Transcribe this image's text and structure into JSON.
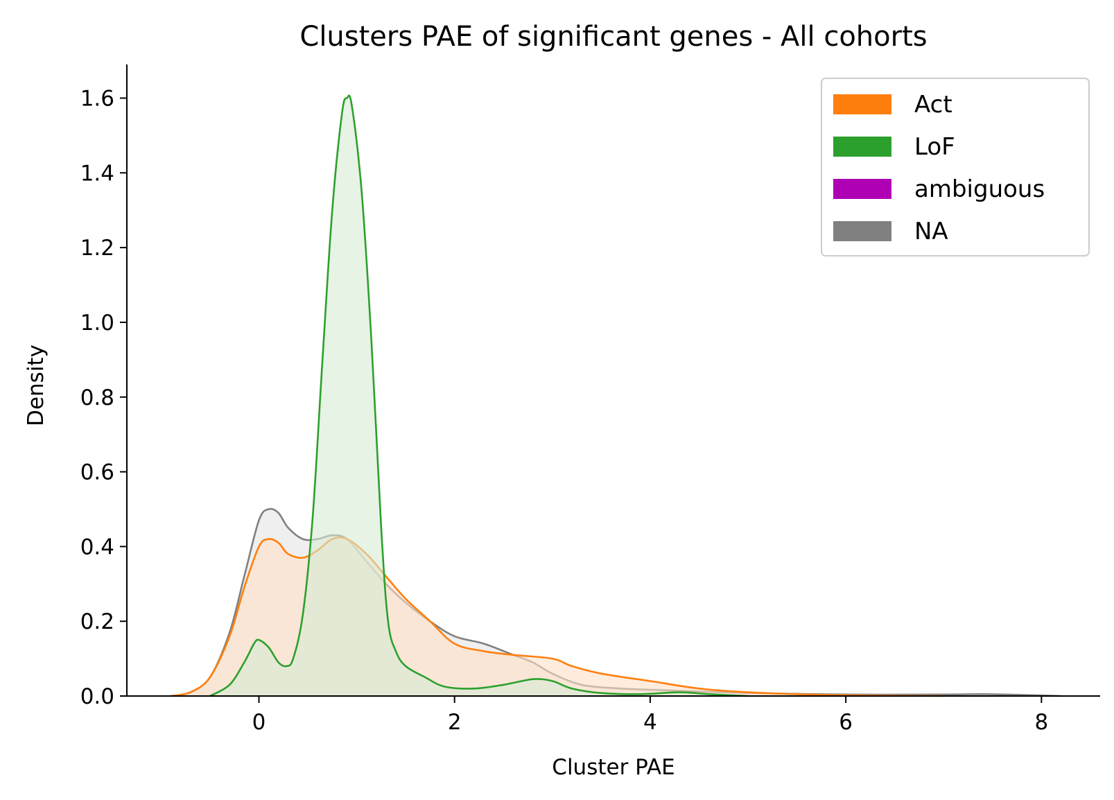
{
  "chart_data": {
    "type": "area",
    "title": "Clusters PAE of significant genes - All cohorts",
    "xlabel": "Cluster PAE",
    "ylabel": "Density",
    "xlim": [
      -1.35,
      8.6
    ],
    "ylim": [
      0,
      1.69
    ],
    "xticks": [
      0,
      2,
      4,
      6,
      8
    ],
    "yticks": [
      0.0,
      0.2,
      0.4,
      0.6,
      0.8,
      1.0,
      1.2,
      1.4,
      1.6
    ],
    "xtick_labels": [
      "0",
      "2",
      "4",
      "6",
      "8"
    ],
    "ytick_labels": [
      "0.0",
      "0.2",
      "0.4",
      "0.6",
      "0.8",
      "1.0",
      "1.2",
      "1.4",
      "1.6"
    ],
    "grid": false,
    "legend_position": "top-right",
    "legend": [
      {
        "label": "Act",
        "color": "#ff7f0e"
      },
      {
        "label": "LoF",
        "color": "#2ca02c"
      },
      {
        "label": "ambiguous",
        "color": "#b000b5"
      },
      {
        "label": "NA",
        "color": "#808080"
      }
    ],
    "series": [
      {
        "name": "NA",
        "color": "#808080",
        "fill": "#e4e4e4",
        "points": [
          [
            -0.9,
            0.0
          ],
          [
            -0.7,
            0.01
          ],
          [
            -0.5,
            0.05
          ],
          [
            -0.3,
            0.17
          ],
          [
            -0.15,
            0.32
          ],
          [
            0.0,
            0.47
          ],
          [
            0.1,
            0.5
          ],
          [
            0.2,
            0.49
          ],
          [
            0.3,
            0.45
          ],
          [
            0.45,
            0.42
          ],
          [
            0.6,
            0.42
          ],
          [
            0.75,
            0.43
          ],
          [
            0.9,
            0.42
          ],
          [
            1.1,
            0.36
          ],
          [
            1.3,
            0.3
          ],
          [
            1.5,
            0.25
          ],
          [
            1.75,
            0.2
          ],
          [
            2.0,
            0.16
          ],
          [
            2.3,
            0.14
          ],
          [
            2.6,
            0.11
          ],
          [
            2.8,
            0.09
          ],
          [
            3.0,
            0.06
          ],
          [
            3.3,
            0.03
          ],
          [
            3.7,
            0.02
          ],
          [
            4.2,
            0.015
          ],
          [
            5.0,
            0.008
          ],
          [
            6.0,
            0.004
          ],
          [
            7.0,
            0.004
          ],
          [
            7.4,
            0.005
          ],
          [
            7.8,
            0.003
          ],
          [
            8.2,
            0.0
          ]
        ]
      },
      {
        "name": "Act",
        "color": "#ff7f0e",
        "fill": "#ffe0c4",
        "points": [
          [
            -0.9,
            0.0
          ],
          [
            -0.7,
            0.01
          ],
          [
            -0.5,
            0.05
          ],
          [
            -0.3,
            0.16
          ],
          [
            -0.15,
            0.29
          ],
          [
            0.0,
            0.4
          ],
          [
            0.1,
            0.42
          ],
          [
            0.2,
            0.41
          ],
          [
            0.3,
            0.38
          ],
          [
            0.45,
            0.37
          ],
          [
            0.6,
            0.39
          ],
          [
            0.75,
            0.42
          ],
          [
            0.9,
            0.42
          ],
          [
            1.1,
            0.38
          ],
          [
            1.3,
            0.32
          ],
          [
            1.5,
            0.26
          ],
          [
            1.75,
            0.2
          ],
          [
            2.0,
            0.14
          ],
          [
            2.3,
            0.12
          ],
          [
            2.6,
            0.11
          ],
          [
            3.0,
            0.1
          ],
          [
            3.2,
            0.08
          ],
          [
            3.5,
            0.06
          ],
          [
            4.0,
            0.04
          ],
          [
            4.5,
            0.02
          ],
          [
            5.0,
            0.01
          ],
          [
            5.5,
            0.005
          ],
          [
            6.0,
            0.002
          ],
          [
            7.0,
            0.0
          ]
        ]
      },
      {
        "name": "LoF",
        "color": "#2ca02c",
        "fill": "#d5ebd3",
        "points": [
          [
            -0.5,
            0.0
          ],
          [
            -0.3,
            0.03
          ],
          [
            -0.15,
            0.09
          ],
          [
            -0.05,
            0.14
          ],
          [
            0.0,
            0.15
          ],
          [
            0.1,
            0.13
          ],
          [
            0.2,
            0.09
          ],
          [
            0.28,
            0.08
          ],
          [
            0.35,
            0.1
          ],
          [
            0.45,
            0.22
          ],
          [
            0.55,
            0.48
          ],
          [
            0.65,
            0.9
          ],
          [
            0.75,
            1.3
          ],
          [
            0.85,
            1.56
          ],
          [
            0.9,
            1.6
          ],
          [
            0.95,
            1.58
          ],
          [
            1.05,
            1.35
          ],
          [
            1.15,
            0.95
          ],
          [
            1.25,
            0.45
          ],
          [
            1.32,
            0.2
          ],
          [
            1.4,
            0.12
          ],
          [
            1.5,
            0.08
          ],
          [
            1.7,
            0.05
          ],
          [
            1.9,
            0.025
          ],
          [
            2.2,
            0.02
          ],
          [
            2.5,
            0.03
          ],
          [
            2.8,
            0.045
          ],
          [
            3.0,
            0.04
          ],
          [
            3.2,
            0.02
          ],
          [
            3.5,
            0.008
          ],
          [
            3.9,
            0.005
          ],
          [
            4.3,
            0.01
          ],
          [
            4.6,
            0.005
          ],
          [
            5.0,
            0.0
          ]
        ]
      }
    ]
  }
}
